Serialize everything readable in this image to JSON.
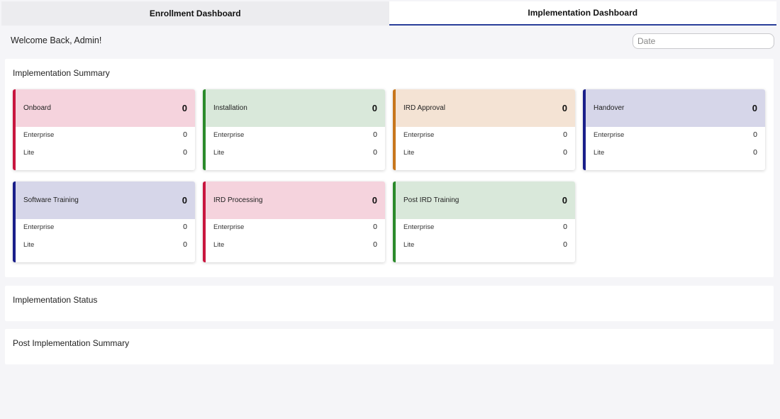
{
  "tabs": [
    {
      "label": "Enrollment Dashboard",
      "active": false
    },
    {
      "label": "Implementation Dashboard",
      "active": true
    }
  ],
  "welcome": "Welcome Back, Admin!",
  "date_placeholder": "Date",
  "summary": {
    "title": "Implementation Summary",
    "cards": [
      {
        "name": "Onboard",
        "total": "0",
        "enterprise_label": "Enterprise",
        "enterprise": "0",
        "lite_label": "Lite",
        "lite": "0",
        "bar_color": "#c8163f",
        "head_color": "#f5d3dd"
      },
      {
        "name": "Installation",
        "total": "0",
        "enterprise_label": "Enterprise",
        "enterprise": "0",
        "lite_label": "Lite",
        "lite": "0",
        "bar_color": "#2b8a2b",
        "head_color": "#d9e8da"
      },
      {
        "name": "IRD Approval",
        "total": "0",
        "enterprise_label": "Enterprise",
        "enterprise": "0",
        "lite_label": "Lite",
        "lite": "0",
        "bar_color": "#c7761c",
        "head_color": "#f4e3d4"
      },
      {
        "name": "Handover",
        "total": "0",
        "enterprise_label": "Enterprise",
        "enterprise": "0",
        "lite_label": "Lite",
        "lite": "0",
        "bar_color": "#1a1f8a",
        "head_color": "#d6d6e9"
      },
      {
        "name": "Software Training",
        "total": "0",
        "enterprise_label": "Enterprise",
        "enterprise": "0",
        "lite_label": "Lite",
        "lite": "0",
        "bar_color": "#1a1f8a",
        "head_color": "#d6d6e9"
      },
      {
        "name": "IRD Processing",
        "total": "0",
        "enterprise_label": "Enterprise",
        "enterprise": "0",
        "lite_label": "Lite",
        "lite": "0",
        "bar_color": "#c8163f",
        "head_color": "#f5d3dd"
      },
      {
        "name": "Post IRD Training",
        "total": "0",
        "enterprise_label": "Enterprise",
        "enterprise": "0",
        "lite_label": "Lite",
        "lite": "0",
        "bar_color": "#2b8a2b",
        "head_color": "#d9e8da"
      }
    ]
  },
  "status": {
    "title": "Implementation Status"
  },
  "post": {
    "title": "Post Implementation Summary"
  }
}
